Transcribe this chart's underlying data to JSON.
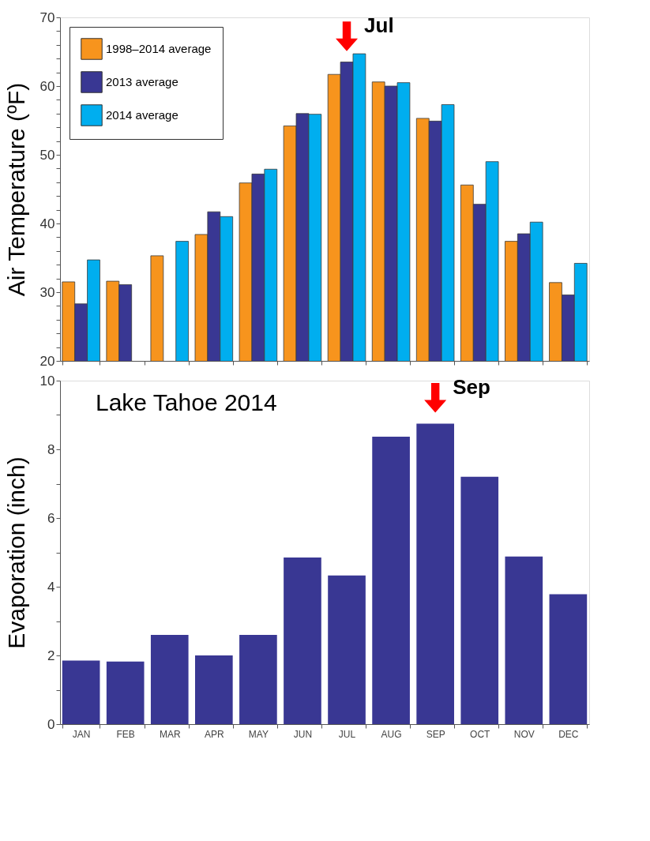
{
  "chart_data": [
    {
      "type": "bar",
      "ylabel": "Air Temperature (ºF)",
      "categories": [
        "JAN",
        "FEB",
        "MAR",
        "APR",
        "MAY",
        "JUN",
        "JUL",
        "AUG",
        "SEP",
        "OCT",
        "NOV",
        "DEC"
      ],
      "series": [
        {
          "name": "1998–2014 average",
          "color": "#f7941d",
          "values": [
            31.5,
            31.6,
            35.3,
            38.4,
            45.9,
            54.2,
            61.7,
            60.6,
            55.3,
            45.6,
            37.4,
            31.4
          ]
        },
        {
          "name": "2013 average",
          "color": "#393793",
          "values": [
            28.3,
            31.1,
            null,
            41.7,
            47.2,
            56.0,
            63.5,
            60.0,
            54.9,
            42.8,
            38.5,
            29.6
          ]
        },
        {
          "name": "2014 average",
          "color": "#00aeef",
          "values": [
            34.7,
            null,
            37.4,
            41.0,
            47.9,
            55.9,
            64.7,
            60.5,
            57.3,
            49.0,
            40.2,
            34.2
          ]
        }
      ],
      "ylim": [
        20,
        70
      ],
      "yticks": [
        20,
        {
          "value": 22,
          "label": null
        },
        {
          "value": 24,
          "label": null
        },
        {
          "value": 26,
          "label": null
        },
        {
          "value": 28,
          "label": null
        },
        30,
        {
          "value": 32,
          "label": null
        },
        {
          "value": 34,
          "label": null
        },
        {
          "value": 36,
          "label": null
        },
        {
          "value": 38,
          "label": null
        },
        40,
        {
          "value": 42,
          "label": null
        },
        {
          "value": 44,
          "label": null
        },
        {
          "value": 46,
          "label": null
        },
        {
          "value": 48,
          "label": null
        },
        50,
        {
          "value": 52,
          "label": null
        },
        {
          "value": 54,
          "label": null
        },
        {
          "value": 56,
          "label": null
        },
        {
          "value": 58,
          "label": null
        },
        60,
        {
          "value": 62,
          "label": null
        },
        {
          "value": 64,
          "label": null
        },
        {
          "value": 66,
          "label": null
        },
        {
          "value": 68,
          "label": null
        },
        70
      ],
      "annotations": [
        {
          "text": "Jul",
          "x": "JUL",
          "y": 63.5
        }
      ],
      "tick_labels": "y",
      "grid": false,
      "legend": "top left"
    },
    {
      "type": "bar",
      "ylabel": "Evaporation (inch)",
      "categories": [
        "JAN",
        "FEB",
        "MAR",
        "APR",
        "MAY",
        "JUN",
        "JUL",
        "AUG",
        "SEP",
        "OCT",
        "NOV",
        "DEC"
      ],
      "values": [
        1.85,
        1.82,
        2.6,
        2.0,
        2.6,
        4.85,
        4.33,
        8.37,
        8.75,
        7.2,
        4.88,
        3.78
      ],
      "color": "#393793",
      "ylim": [
        0,
        10
      ],
      "yticks": [
        0,
        {
          "value": 1,
          "label": null
        },
        2,
        {
          "value": 3,
          "label": null
        },
        4,
        {
          "value": 5,
          "label": null
        },
        6,
        {
          "value": 7,
          "label": null
        },
        8,
        {
          "value": 9,
          "label": null
        },
        10
      ],
      "annotations": [
        "Lake Tahoe 2014",
        {
          "text": "Sep",
          "x": "SEP",
          "y": 8.75
        }
      ],
      "grid": false,
      "legend": false
    }
  ]
}
